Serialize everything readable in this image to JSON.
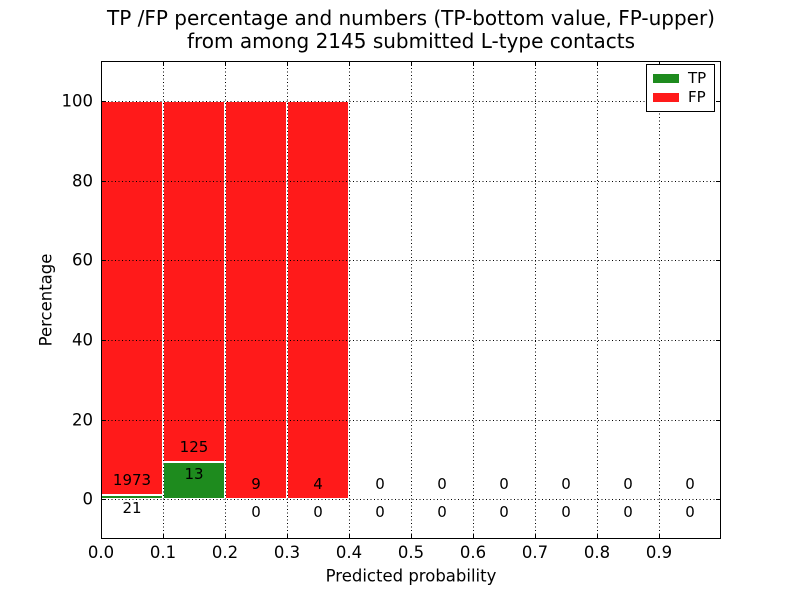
{
  "chart_data": {
    "type": "bar",
    "title_line1": "TP /FP percentage and numbers (TP-bottom value, FP-upper)",
    "title_line2": "from among 2145 submitted L-type contacts",
    "total_contacts": 2145,
    "xlabel": "Predicted probability",
    "ylabel": "Percentage",
    "xlim": [
      0.0,
      1.0
    ],
    "ylim": [
      -10,
      110
    ],
    "x_ticks": [
      0.0,
      0.1,
      0.2,
      0.3,
      0.4,
      0.5,
      0.6,
      0.7,
      0.8,
      0.9
    ],
    "x_tick_labels": [
      "0.0",
      "0.1",
      "0.2",
      "0.3",
      "0.4",
      "0.5",
      "0.6",
      "0.7",
      "0.8",
      "0.9"
    ],
    "y_ticks": [
      0,
      20,
      40,
      60,
      80,
      100
    ],
    "y_tick_labels": [
      "0",
      "20",
      "40",
      "60",
      "80",
      "100"
    ],
    "grid": true,
    "grid_style": "dotted",
    "stacking": "percent_within_bin",
    "legend": {
      "position": "upper right",
      "entries": [
        {
          "label": "TP",
          "color": "#1e8b1e"
        },
        {
          "label": "FP",
          "color": "#ff1a1a"
        }
      ]
    },
    "colors": {
      "tp": "#1e8b1e",
      "fp": "#ff1a1a",
      "bar_edge": "#ffffff",
      "grid": "#000000",
      "text": "#000000",
      "background": "#ffffff"
    },
    "bins": [
      {
        "range": [
          0.0,
          0.1
        ],
        "tp": 21,
        "fp": 1973
      },
      {
        "range": [
          0.1,
          0.2
        ],
        "tp": 13,
        "fp": 125
      },
      {
        "range": [
          0.2,
          0.3
        ],
        "tp": 0,
        "fp": 9
      },
      {
        "range": [
          0.3,
          0.4
        ],
        "tp": 0,
        "fp": 4
      },
      {
        "range": [
          0.4,
          0.5
        ],
        "tp": 0,
        "fp": 0
      },
      {
        "range": [
          0.5,
          0.6
        ],
        "tp": 0,
        "fp": 0
      },
      {
        "range": [
          0.6,
          0.7
        ],
        "tp": 0,
        "fp": 0
      },
      {
        "range": [
          0.7,
          0.8
        ],
        "tp": 0,
        "fp": 0
      },
      {
        "range": [
          0.8,
          0.9
        ],
        "tp": 0,
        "fp": 0
      },
      {
        "range": [
          0.9,
          1.0
        ],
        "tp": 0,
        "fp": 0
      }
    ]
  }
}
